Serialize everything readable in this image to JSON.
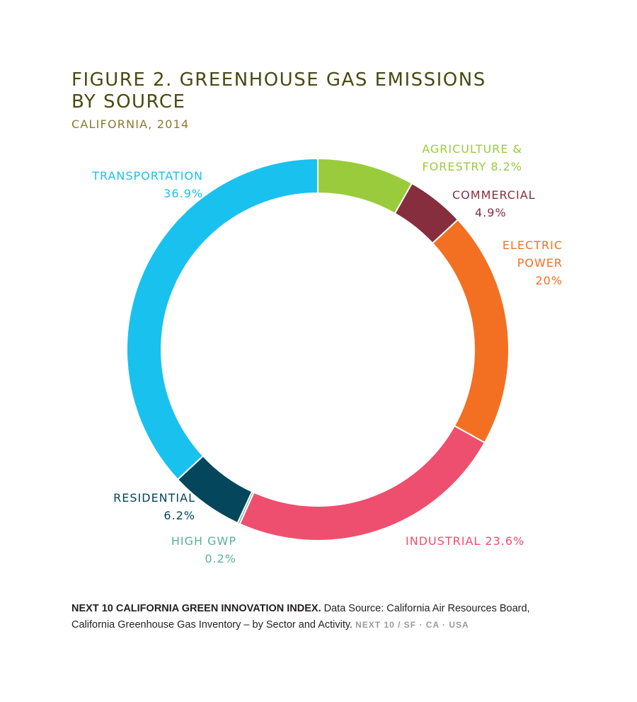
{
  "title_line1": "FIGURE 2. GREENHOUSE GAS EMISSIONS",
  "title_line2": "BY SOURCE",
  "subtitle": "CALIFORNIA, 2014",
  "chart_data": {
    "type": "pie",
    "donut": true,
    "categories": [
      "Agriculture & Forestry",
      "Commercial",
      "Electric Power",
      "Industrial",
      "High GWP",
      "Residential",
      "Transportation"
    ],
    "values": [
      8.2,
      4.9,
      20,
      23.6,
      0.2,
      6.2,
      36.9
    ],
    "colors": [
      "#9acb3c",
      "#862e3e",
      "#f37022",
      "#ef4f6e",
      "#57b399",
      "#04465b",
      "#19c1ef"
    ],
    "labels": [
      {
        "lines": [
          "AGRICULTURE &",
          "FORESTRY 8.2%"
        ]
      },
      {
        "lines": [
          "COMMERCIAL",
          "4.9%"
        ]
      },
      {
        "lines": [
          "ELECTRIC",
          "POWER",
          "20%"
        ]
      },
      {
        "lines": [
          "INDUSTRIAL 23.6%"
        ]
      },
      {
        "lines": [
          "HIGH GWP",
          "0.2%"
        ]
      },
      {
        "lines": [
          "RESIDENTIAL",
          "6.2%"
        ]
      },
      {
        "lines": [
          "TRANSPORTATION",
          "36.9%"
        ]
      }
    ]
  },
  "footer": {
    "brand": "NEXT 10 CALIFORNIA GREEN INNOVATION INDEX.",
    "source": "Data Source: California Air Resources Board, California Greenhouse Gas Inventory – by Sector and Activity.",
    "mark": "NEXT 10 / SF · CA · USA"
  }
}
